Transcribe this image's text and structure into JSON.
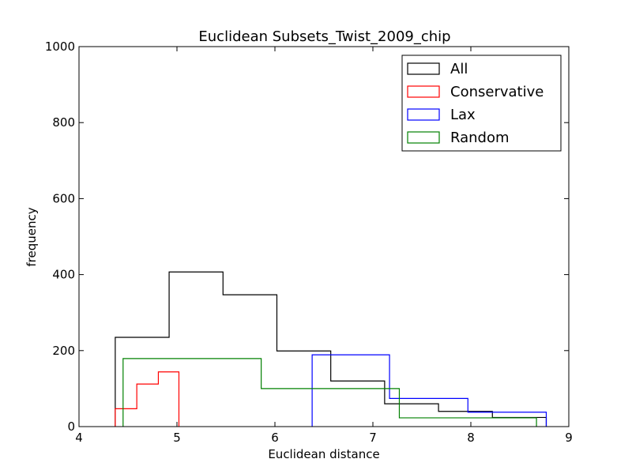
{
  "chart_data": {
    "type": "histogram",
    "title": "Euclidean Subsets_Twist_2009_chip",
    "xlabel": "Euclidean distance",
    "ylabel": "frequency",
    "xlim": [
      4,
      9
    ],
    "ylim": [
      0,
      1000
    ],
    "xticks": [
      "4",
      "5",
      "6",
      "7",
      "8",
      "9"
    ],
    "yticks": [
      "0",
      "200",
      "400",
      "600",
      "800",
      "1000"
    ],
    "legend_position": "upper right",
    "series": [
      {
        "name": "All",
        "color": "#000000",
        "edges": [
          4.37,
          4.92,
          5.47,
          6.02,
          6.57,
          7.12,
          7.67,
          8.22,
          8.77
        ],
        "values": [
          235,
          407,
          347,
          199,
          120,
          60,
          40,
          24
        ]
      },
      {
        "name": "Conservative",
        "color": "#ff0000",
        "edges": [
          4.37,
          4.59,
          4.81,
          5.02
        ],
        "values": [
          47,
          112,
          144
        ]
      },
      {
        "name": "Lax",
        "color": "#0000ff",
        "edges": [
          6.38,
          7.17,
          7.97,
          8.77
        ],
        "values": [
          189,
          74,
          38
        ]
      },
      {
        "name": "Random",
        "color": "#008000",
        "edges": [
          4.45,
          5.86,
          7.27,
          8.67
        ],
        "values": [
          179,
          100,
          23
        ]
      }
    ]
  }
}
